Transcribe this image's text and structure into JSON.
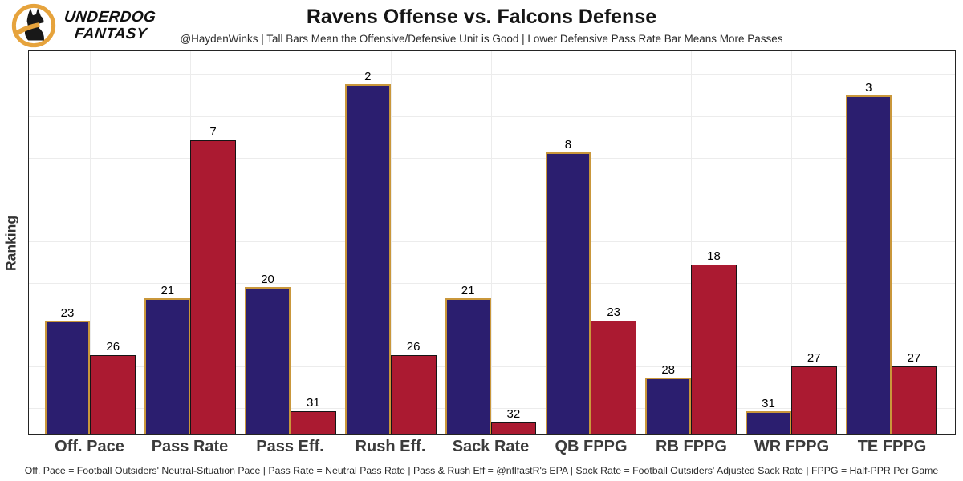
{
  "logo": {
    "brand_line1": "UNDERDOG",
    "brand_line2": "FANTASY",
    "gold": "#e6a33c",
    "black": "#181818"
  },
  "header": {
    "title": "Ravens Offense vs. Falcons Defense",
    "subtitle": "@HaydenWinks | Tall Bars Mean the Offensive/Defensive Unit is Good | Lower Defensive Pass Rate Bar Means More Passes"
  },
  "chart_data": {
    "type": "bar",
    "title": "Ravens Offense vs. Falcons Defense",
    "ylabel": "Ranking",
    "categories": [
      "Off. Pace",
      "Pass Rate",
      "Pass Eff.",
      "Rush Eff.",
      "Sack Rate",
      "QB FPPG",
      "RB FPPG",
      "WR FPPG",
      "TE FPPG"
    ],
    "series": [
      {
        "name": "Ravens Offense",
        "color": "#2b1e6f",
        "edge_color": "#c9973b",
        "values": [
          23,
          21,
          20,
          2,
          21,
          8,
          28,
          31,
          3
        ]
      },
      {
        "name": "Falcons Defense",
        "color": "#ab1a31",
        "edge_color": "#151515",
        "values": [
          26,
          7,
          31,
          26,
          32,
          23,
          18,
          27,
          27
        ]
      }
    ],
    "value_labels_shown": true,
    "bar_height_rule": "bar height = 33 - rank, so taller bars mean better ranking",
    "ylim": [
      0,
      34
    ],
    "grid": true,
    "legend_position": "none"
  },
  "footer": {
    "note": "Off. Pace = Football Outsiders' Neutral-Situation Pace | Pass Rate = Neutral Pass Rate | Pass & Rush Eff = @nflfastR's EPA | Sack Rate = Football Outsiders' Adjusted Sack Rate | FPPG = Half-PPR Per Game"
  }
}
